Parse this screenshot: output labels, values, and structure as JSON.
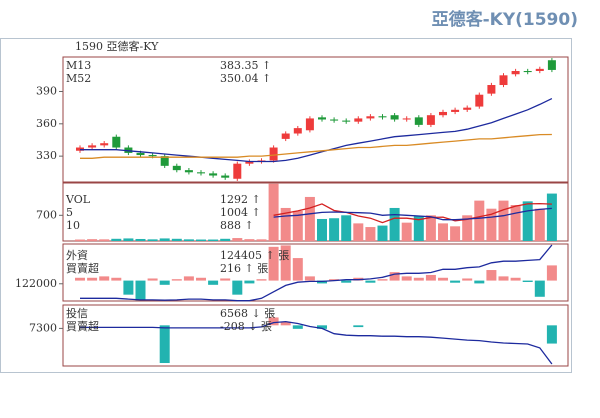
{
  "chart_data": [
    {
      "type": "candlestick",
      "title": "亞德客-KY(1590)",
      "header": "1590 亞德客-KY",
      "ylim": [
        306,
        422
      ],
      "yticks": [
        330,
        360,
        390
      ],
      "up_color": "#ee3b3b",
      "down_color": "#1f9a3a",
      "open": [
        335,
        338,
        340,
        348,
        338,
        333,
        331,
        330,
        321,
        317,
        315,
        314,
        312,
        309,
        323,
        325,
        326,
        346,
        351,
        354,
        366,
        364,
        363,
        362,
        365,
        367,
        368,
        364,
        366,
        359,
        368,
        371,
        373,
        376,
        388,
        396,
        406,
        409,
        409,
        419
      ],
      "high": [
        340,
        342,
        344,
        350,
        340,
        335,
        333,
        332,
        323,
        319,
        317,
        316,
        314,
        325,
        327,
        328,
        340,
        353,
        358,
        367,
        368,
        366,
        365,
        367,
        369,
        369,
        370,
        367,
        368,
        370,
        373,
        375,
        377,
        389,
        398,
        407,
        411,
        411,
        413,
        421
      ],
      "low": [
        333,
        336,
        338,
        336,
        331,
        329,
        328,
        319,
        315,
        313,
        312,
        310,
        308,
        307,
        321,
        323,
        324,
        344,
        349,
        352,
        362,
        361,
        360,
        360,
        363,
        364,
        362,
        362,
        357,
        357,
        366,
        369,
        371,
        374,
        386,
        394,
        404,
        406,
        407,
        408
      ],
      "close": [
        338,
        340,
        342,
        338,
        333,
        331,
        330,
        321,
        317,
        315,
        314,
        312,
        310,
        323,
        325,
        326,
        338,
        351,
        356,
        365,
        364,
        363,
        362,
        365,
        367,
        366,
        364,
        365,
        359,
        368,
        371,
        373,
        375,
        387,
        396,
        405,
        409,
        408,
        411,
        410
      ],
      "series": [
        {
          "name": "M13",
          "type": "line",
          "color": "#1d2a9e",
          "last_label": "383.35 ↑",
          "values": [
            336,
            336,
            336,
            336,
            335,
            334,
            333,
            332,
            331,
            330,
            329,
            328,
            327,
            326,
            325,
            325,
            325,
            326,
            328,
            331,
            334,
            337,
            340,
            342,
            344,
            346,
            348,
            349,
            350,
            351,
            352,
            353,
            355,
            358,
            361,
            365,
            369,
            373,
            378,
            383.35
          ]
        },
        {
          "name": "M52",
          "type": "line",
          "color": "#d98b25",
          "last_label": "350.04 ↑",
          "values": [
            328,
            328,
            329,
            329,
            329,
            329,
            329,
            329,
            329,
            329,
            329,
            329,
            329,
            329,
            330,
            330,
            331,
            332,
            333,
            334,
            335,
            336,
            337,
            338,
            338,
            339,
            340,
            340,
            341,
            342,
            343,
            344,
            345,
            346,
            346,
            347,
            348,
            349,
            350,
            350.04
          ]
        }
      ]
    },
    {
      "type": "bar",
      "ylim": [
        0,
        1580
      ],
      "yticks": [
        700
      ],
      "series": [
        {
          "name": "VOL",
          "type": "bar",
          "up_color": "#f28a8a",
          "down_color": "#22b3b0",
          "legend_color": "#333333",
          "last_label": "1292 ↑",
          "values": [
            40,
            50,
            45,
            60,
            70,
            55,
            45,
            70,
            60,
            45,
            40,
            40,
            60,
            80,
            50,
            45,
            1560,
            900,
            820,
            1200,
            600,
            620,
            700,
            480,
            380,
            420,
            900,
            500,
            680,
            700,
            480,
            400,
            700,
            1100,
            880,
            1100,
            980,
            1080,
            880,
            1292
          ]
        },
        {
          "name": "5",
          "type": "line",
          "color": "#d42020",
          "last_label": "1004 ↑",
          "values": [
            null,
            null,
            null,
            null,
            null,
            null,
            null,
            null,
            null,
            null,
            null,
            null,
            null,
            null,
            null,
            null,
            700,
            760,
            820,
            900,
            1010,
            830,
            780,
            680,
            620,
            500,
            620,
            620,
            580,
            640,
            650,
            550,
            590,
            660,
            730,
            850,
            950,
            1010,
            1020,
            1004
          ]
        },
        {
          "name": "10",
          "type": "line",
          "color": "#1d2a9e",
          "last_label": "888 ↑",
          "values": [
            null,
            null,
            null,
            null,
            null,
            null,
            null,
            null,
            null,
            null,
            null,
            null,
            null,
            null,
            null,
            null,
            650,
            680,
            700,
            740,
            780,
            790,
            780,
            770,
            760,
            700,
            720,
            700,
            680,
            660,
            580,
            580,
            600,
            620,
            650,
            690,
            760,
            820,
            860,
            888
          ]
        }
      ]
    },
    {
      "type": "bar",
      "ylim": [
        -290,
        520
      ],
      "y2lim": [
        120930,
        124470
      ],
      "y2ticks": [
        122000
      ],
      "series": [
        {
          "name": "外資",
          "type": "line",
          "axis": "y2",
          "color": "#1d2a9e",
          "last_label": "124405 ↑ 張",
          "values": [
            121100,
            121100,
            121100,
            121100,
            121050,
            121000,
            121000,
            120980,
            121000,
            121050,
            121050,
            121000,
            121000,
            120950,
            120950,
            121100,
            121500,
            121900,
            122100,
            122150,
            122150,
            122200,
            122250,
            122250,
            122300,
            122400,
            122600,
            122650,
            122650,
            122700,
            122900,
            122900,
            123000,
            123050,
            123300,
            123400,
            123400,
            123450,
            123500,
            124405
          ]
        },
        {
          "name": "買賣超",
          "type": "bar",
          "up_color": "#f28a8a",
          "down_color": "#22b3b0",
          "legend_color": "#333333",
          "last_label": "216 ↑ 張",
          "values": [
            40,
            40,
            60,
            40,
            -200,
            -280,
            30,
            -60,
            20,
            60,
            40,
            -60,
            30,
            -200,
            -40,
            20,
            480,
            500,
            320,
            60,
            -40,
            20,
            -30,
            40,
            -30,
            20,
            120,
            60,
            40,
            80,
            40,
            -30,
            30,
            -40,
            150,
            60,
            40,
            -20,
            -230,
            216
          ]
        }
      ]
    },
    {
      "type": "bar",
      "ylim": [
        -464,
        232
      ],
      "y2lim": [
        6527,
        7781
      ],
      "y2ticks": [
        7300
      ],
      "series": [
        {
          "name": "投信",
          "type": "line",
          "axis": "y2",
          "color": "#1d2a9e",
          "last_label": "6568 ↓ 張",
          "values": [
            7320,
            7320,
            7320,
            7320,
            7320,
            7320,
            7320,
            7310,
            7310,
            7310,
            7310,
            7310,
            7310,
            7310,
            7310,
            7330,
            7420,
            7440,
            7400,
            7340,
            7300,
            7190,
            7160,
            7150,
            7150,
            7140,
            7140,
            7130,
            7130,
            7120,
            7100,
            7080,
            7060,
            7050,
            7020,
            7000,
            6990,
            6980,
            6900,
            6568
          ]
        },
        {
          "name": "買賣超",
          "type": "bar",
          "up_color": "#f28a8a",
          "down_color": "#22b3b0",
          "legend_color": "#333333",
          "last_label": "-208 ↓ 張",
          "values": [
            0,
            0,
            0,
            0,
            0,
            0,
            0,
            -430,
            0,
            0,
            0,
            0,
            0,
            0,
            0,
            0,
            90,
            40,
            -40,
            0,
            -40,
            0,
            0,
            -20,
            0,
            0,
            0,
            0,
            0,
            0,
            0,
            0,
            0,
            0,
            0,
            0,
            0,
            0,
            0,
            -208
          ]
        }
      ]
    }
  ]
}
